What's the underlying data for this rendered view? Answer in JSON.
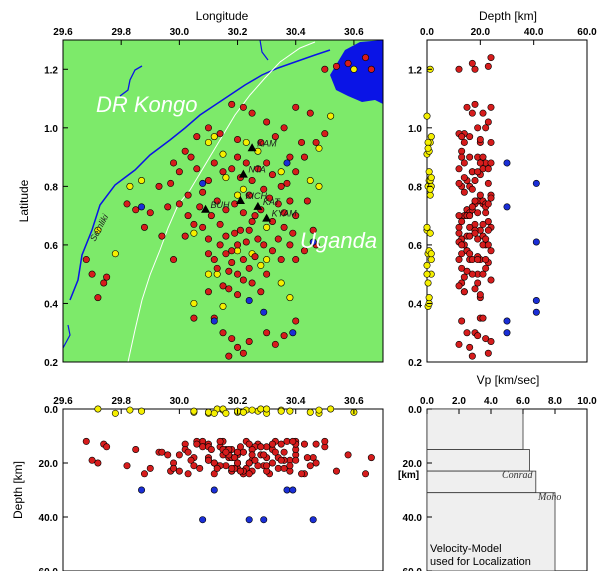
{
  "map_panel": {
    "x_title": "Longitude",
    "y_title": "Latitude",
    "x_ticks": [
      "29.6",
      "29.8",
      "30.0",
      "30.2",
      "30.4",
      "30.6"
    ],
    "y_ticks": [
      "0.2",
      "0.4",
      "0.6",
      "0.8",
      "1.0",
      "1.2"
    ],
    "label_country1": "DR Kongo",
    "label_country2": "Uganda",
    "label_river": "Semliki",
    "stations": [
      {
        "name": "KAM",
        "lon": 30.25,
        "lat": 0.93
      },
      {
        "name": "NTA",
        "lon": 30.22,
        "lat": 0.84
      },
      {
        "name": "BUH",
        "lon": 30.09,
        "lat": 0.72
      },
      {
        "name": "KICH",
        "lon": 30.21,
        "lat": 0.75
      },
      {
        "name": "KYAM",
        "lon": 30.3,
        "lat": 0.69
      },
      {
        "name": "KAT",
        "lon": 30.27,
        "lat": 0.73
      }
    ],
    "colors": {
      "land": "#7dea6a",
      "water": "#0a14e6",
      "shallow": "#f5ef00",
      "mid": "#d61c1c",
      "deep": "#1a2ed6",
      "station": "#000000"
    }
  },
  "depth_panel": {
    "x_title": "Depth [km]",
    "x_ticks": [
      "0.0",
      "20.0",
      "40.0",
      "60.0"
    ],
    "y_ticks": [
      "0.2",
      "0.4",
      "0.6",
      "0.8",
      "1.0",
      "1.2"
    ]
  },
  "section_panel": {
    "y_title": "Depth [km]",
    "x_ticks": [
      "29.6",
      "29.8",
      "30.0",
      "30.2",
      "30.4",
      "30.6"
    ],
    "y_ticks": [
      "0.0",
      "20.0",
      "40.0",
      "60.0"
    ]
  },
  "velocity_panel": {
    "x_title": "Vp [km/sec]",
    "x_ticks": [
      "0.0",
      "2.0",
      "4.0",
      "6.0",
      "8.0",
      "10.0"
    ],
    "y_ticks": [
      "0.0",
      "20.0",
      "40.0",
      "60.0"
    ],
    "y_unit": "[km]",
    "label_conrad": "Conrad",
    "label_moho": "Moho",
    "note_line1": "Velocity-Model",
    "note_line2": "used for Localization"
  },
  "chart_data": [
    {
      "type": "scatter",
      "name": "epicenter map",
      "xlim": [
        29.6,
        30.7
      ],
      "ylim": [
        0.2,
        1.3
      ],
      "xlabel": "Longitude",
      "ylabel": "Latitude",
      "series": [
        {
          "name": "shallow",
          "color": "#f5ef00",
          "points": [
            [
              29.72,
              0.65
            ],
            [
              29.83,
              0.8
            ],
            [
              29.87,
              0.82
            ],
            [
              30.05,
              0.64
            ],
            [
              30.1,
              0.5
            ],
            [
              30.13,
              0.5
            ],
            [
              30.15,
              0.39
            ],
            [
              30.05,
              0.4
            ],
            [
              30.1,
              0.95
            ],
            [
              30.12,
              0.97
            ],
            [
              30.15,
              0.91
            ],
            [
              30.23,
              0.95
            ],
            [
              30.27,
              0.92
            ],
            [
              30.2,
              0.77
            ],
            [
              30.3,
              0.55
            ],
            [
              30.28,
              0.53
            ],
            [
              30.35,
              0.47
            ],
            [
              30.38,
              0.42
            ],
            [
              30.45,
              0.82
            ],
            [
              30.48,
              0.8
            ],
            [
              30.52,
              1.04
            ],
            [
              30.48,
              0.93
            ],
            [
              30.35,
              0.85
            ],
            [
              30.22,
              0.79
            ],
            [
              30.16,
              0.83
            ],
            [
              30.3,
              0.66
            ],
            [
              30.25,
              0.57
            ],
            [
              30.2,
              0.58
            ],
            [
              30.6,
              1.2
            ],
            [
              29.78,
              0.57
            ]
          ]
        },
        {
          "name": "mid",
          "color": "#d61c1c",
          "points": [
            [
              29.68,
              0.55
            ],
            [
              29.7,
              0.5
            ],
            [
              29.74,
              0.47
            ],
            [
              29.72,
              0.42
            ],
            [
              29.75,
              0.49
            ],
            [
              29.82,
              0.74
            ],
            [
              29.85,
              0.72
            ],
            [
              29.9,
              0.71
            ],
            [
              29.93,
              0.8
            ],
            [
              29.97,
              0.81
            ],
            [
              30.0,
              0.85
            ],
            [
              30.03,
              0.77
            ],
            [
              30.05,
              0.67
            ],
            [
              30.08,
              0.66
            ],
            [
              30.1,
              0.62
            ],
            [
              30.1,
              0.57
            ],
            [
              30.12,
              0.55
            ],
            [
              30.14,
              0.6
            ],
            [
              30.16,
              0.63
            ],
            [
              30.18,
              0.58
            ],
            [
              30.2,
              0.6
            ],
            [
              30.22,
              0.55
            ],
            [
              30.18,
              0.54
            ],
            [
              30.2,
              0.5
            ],
            [
              30.22,
              0.48
            ],
            [
              30.17,
              0.45
            ],
            [
              30.15,
              0.46
            ],
            [
              30.25,
              0.47
            ],
            [
              30.27,
              0.62
            ],
            [
              30.24,
              0.65
            ],
            [
              30.26,
              0.7
            ],
            [
              30.29,
              0.6
            ],
            [
              30.32,
              0.58
            ],
            [
              30.34,
              0.62
            ],
            [
              30.36,
              0.66
            ],
            [
              30.38,
              0.6
            ],
            [
              30.4,
              0.55
            ],
            [
              30.43,
              0.58
            ],
            [
              30.46,
              0.65
            ],
            [
              30.4,
              0.7
            ],
            [
              30.38,
              0.75
            ],
            [
              30.35,
              0.8
            ],
            [
              30.32,
              0.84
            ],
            [
              30.3,
              0.88
            ],
            [
              30.27,
              0.86
            ],
            [
              30.25,
              0.82
            ],
            [
              30.23,
              0.88
            ],
            [
              30.2,
              0.9
            ],
            [
              30.18,
              0.86
            ],
            [
              30.15,
              0.85
            ],
            [
              30.12,
              0.88
            ],
            [
              30.1,
              0.82
            ],
            [
              30.06,
              0.86
            ],
            [
              30.04,
              0.9
            ],
            [
              30.02,
              0.92
            ],
            [
              29.98,
              0.88
            ],
            [
              30.08,
              0.78
            ],
            [
              30.13,
              0.75
            ],
            [
              30.16,
              0.72
            ],
            [
              30.19,
              0.74
            ],
            [
              30.22,
              0.71
            ],
            [
              30.25,
              0.68
            ],
            [
              30.28,
              0.72
            ],
            [
              30.31,
              0.76
            ],
            [
              30.34,
              0.74
            ],
            [
              30.37,
              0.81
            ],
            [
              30.4,
              0.85
            ],
            [
              30.43,
              0.9
            ],
            [
              30.47,
              0.95
            ],
            [
              30.5,
              0.98
            ],
            [
              30.45,
              1.05
            ],
            [
              30.4,
              1.07
            ],
            [
              30.36,
              1.0
            ],
            [
              30.33,
              0.97
            ],
            [
              30.3,
              1.02
            ],
            [
              30.25,
              1.05
            ],
            [
              30.22,
              1.07
            ],
            [
              30.18,
              1.08
            ],
            [
              30.14,
              0.98
            ],
            [
              30.1,
              1.0
            ],
            [
              30.06,
              0.97
            ],
            [
              30.2,
              0.96
            ],
            [
              30.28,
              0.95
            ],
            [
              30.38,
              0.9
            ],
            [
              30.15,
              0.3
            ],
            [
              30.18,
              0.28
            ],
            [
              30.2,
              0.25
            ],
            [
              30.22,
              0.23
            ],
            [
              30.17,
              0.22
            ],
            [
              30.24,
              0.27
            ],
            [
              30.3,
              0.3
            ],
            [
              30.33,
              0.26
            ],
            [
              30.36,
              0.29
            ],
            [
              30.4,
              0.34
            ],
            [
              30.12,
              0.35
            ],
            [
              30.1,
              0.44
            ],
            [
              30.05,
              0.35
            ],
            [
              30.02,
              0.63
            ],
            [
              29.98,
              0.55
            ],
            [
              29.94,
              0.63
            ],
            [
              30.54,
              1.21
            ],
            [
              30.58,
              1.22
            ],
            [
              30.64,
              1.24
            ],
            [
              30.66,
              1.2
            ],
            [
              30.5,
              1.2
            ],
            [
              30.36,
              0.71
            ],
            [
              30.32,
              0.68
            ],
            [
              30.24,
              0.77
            ],
            [
              30.21,
              0.83
            ],
            [
              30.14,
              0.67
            ],
            [
              30.11,
              0.7
            ],
            [
              30.07,
              0.73
            ],
            [
              30.03,
              0.7
            ],
            [
              30.0,
              0.74
            ],
            [
              29.96,
              0.73
            ],
            [
              29.88,
              0.66
            ],
            [
              30.19,
              0.64
            ],
            [
              30.23,
              0.61
            ],
            [
              30.26,
              0.56
            ],
            [
              30.24,
              0.52
            ],
            [
              30.2,
              0.43
            ],
            [
              30.28,
              0.44
            ],
            [
              30.3,
              0.5
            ],
            [
              30.17,
              0.51
            ],
            [
              30.13,
              0.52
            ],
            [
              30.16,
              0.57
            ],
            [
              30.21,
              0.65
            ],
            [
              30.29,
              0.79
            ],
            [
              30.42,
              0.95
            ],
            [
              30.44,
              0.75
            ],
            [
              30.39,
              0.64
            ],
            [
              30.35,
              0.55
            ],
            [
              30.47,
              0.6
            ]
          ]
        },
        {
          "name": "deep",
          "color": "#1a2ed6",
          "points": [
            [
              30.37,
              0.88
            ],
            [
              30.08,
              0.81
            ],
            [
              29.87,
              0.73
            ],
            [
              30.24,
              0.41
            ],
            [
              30.12,
              0.34
            ],
            [
              30.29,
              0.37
            ],
            [
              30.39,
              0.3
            ],
            [
              30.46,
              0.61
            ]
          ]
        }
      ]
    },
    {
      "type": "scatter",
      "name": "depth vs latitude",
      "xlim": [
        0,
        60
      ],
      "ylim": [
        0.2,
        1.3
      ],
      "xlabel": "Depth [km]"
    },
    {
      "type": "scatter",
      "name": "depth section",
      "xlim": [
        29.6,
        30.7
      ],
      "ylim": [
        60,
        0
      ],
      "ylabel": "Depth [km]"
    },
    {
      "type": "line",
      "name": "velocity model",
      "xlabel": "Vp [km/sec]",
      "xlim": [
        0,
        10
      ],
      "ylim": [
        60,
        0
      ],
      "layers": [
        {
          "top": 0,
          "bottom": 15,
          "vp": 6.0
        },
        {
          "top": 15,
          "bottom": 23,
          "vp": 6.4
        },
        {
          "top": 23,
          "bottom": 31,
          "vp": 6.8
        },
        {
          "top": 31,
          "bottom": 60,
          "vp": 8.0
        }
      ]
    }
  ]
}
